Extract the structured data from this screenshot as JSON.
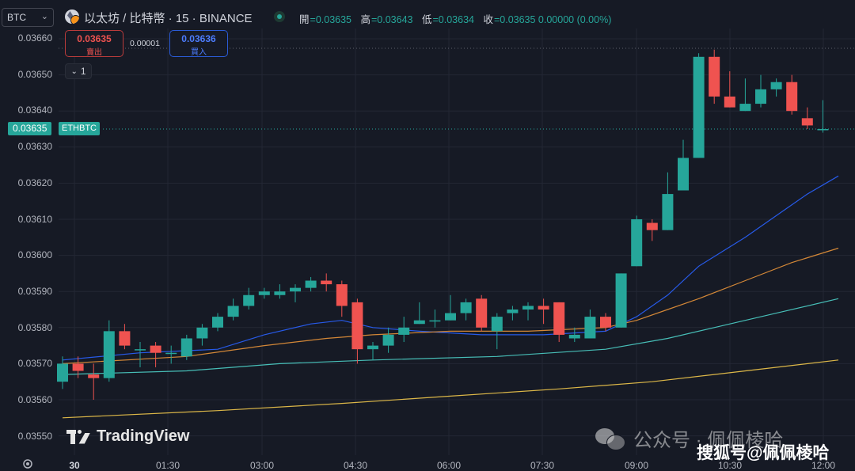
{
  "header": {
    "symbol_select": "BTC",
    "title": "以太坊 / 比特幣 · 15 · BINANCE",
    "ohlc": [
      {
        "k": "開",
        "v": "=0.03635"
      },
      {
        "k": "高",
        "v": "=0.03643"
      },
      {
        "k": "低",
        "v": "=0.03634"
      },
      {
        "k": "收",
        "v": "=0.03635 0.00000 (0.00%)"
      }
    ]
  },
  "trade": {
    "sell_price": "0.03635",
    "sell_label": "賣出",
    "spread": "0.00001",
    "buy_price": "0.03636",
    "buy_label": "買入",
    "collapse_label": "1"
  },
  "price_axis": {
    "ticks": [
      "0.03660",
      "0.03650",
      "0.03640",
      "0.03630",
      "0.03620",
      "0.03610",
      "0.03600",
      "0.03590",
      "0.03580",
      "0.03570",
      "0.03560",
      "0.03550"
    ],
    "last_price": "0.03635",
    "last_symbol": "ETHBTC"
  },
  "time_axis": [
    "30",
    "01:30",
    "03:00",
    "04:30",
    "06:00",
    "07:30",
    "09:00",
    "10:30",
    "12:00"
  ],
  "watermarks": {
    "tradingview": "TradingView",
    "wechat": "公众号 · 佩佩棱哈",
    "sohu": "搜狐号@佩佩棱哈"
  },
  "colors": {
    "background": "#161a25",
    "up": "#26a69a",
    "down": "#ef5350",
    "ma_blue": "#2962ff",
    "ma_orange": "#e8933a",
    "ma_teal": "#4dd0c8",
    "ma_yellow": "#f2c94c"
  },
  "chart_data": {
    "type": "candlestick",
    "symbol": "ETHBTC",
    "ylim": [
      0.03545,
      0.03665
    ],
    "candles": [
      [
        0.03565,
        0.03572,
        0.03563,
        0.0357
      ],
      [
        0.0357,
        0.03572,
        0.03566,
        0.03568
      ],
      [
        0.03567,
        0.0357,
        0.0356,
        0.03566
      ],
      [
        0.03566,
        0.03582,
        0.03565,
        0.03579
      ],
      [
        0.03579,
        0.03581,
        0.03574,
        0.03575
      ],
      [
        0.03574,
        0.03576,
        0.03569,
        0.03574
      ],
      [
        0.03575,
        0.03576,
        0.03569,
        0.03573
      ],
      [
        0.03573,
        0.03575,
        0.0357,
        0.03573
      ],
      [
        0.03572,
        0.03578,
        0.03571,
        0.03577
      ],
      [
        0.03577,
        0.03581,
        0.03575,
        0.0358
      ],
      [
        0.0358,
        0.03584,
        0.03579,
        0.03583
      ],
      [
        0.03583,
        0.03588,
        0.03582,
        0.03586
      ],
      [
        0.03586,
        0.03591,
        0.03585,
        0.03589
      ],
      [
        0.03589,
        0.03591,
        0.03588,
        0.0359
      ],
      [
        0.03589,
        0.03592,
        0.03588,
        0.0359
      ],
      [
        0.0359,
        0.03592,
        0.03587,
        0.03591
      ],
      [
        0.03591,
        0.03594,
        0.0359,
        0.03593
      ],
      [
        0.03593,
        0.03595,
        0.0359,
        0.03592
      ],
      [
        0.03592,
        0.03593,
        0.03583,
        0.03586
      ],
      [
        0.03587,
        0.03588,
        0.0357,
        0.03574
      ],
      [
        0.03574,
        0.03576,
        0.03571,
        0.03575
      ],
      [
        0.03575,
        0.0358,
        0.03573,
        0.03578
      ],
      [
        0.03578,
        0.03583,
        0.03576,
        0.0358
      ],
      [
        0.03581,
        0.03587,
        0.03581,
        0.03582
      ],
      [
        0.03582,
        0.03585,
        0.0358,
        0.03582
      ],
      [
        0.03582,
        0.03589,
        0.03582,
        0.03584
      ],
      [
        0.03584,
        0.03588,
        0.03582,
        0.03587
      ],
      [
        0.03588,
        0.03589,
        0.03579,
        0.0358
      ],
      [
        0.03579,
        0.03584,
        0.03574,
        0.03583
      ],
      [
        0.03584,
        0.03586,
        0.03582,
        0.03585
      ],
      [
        0.03585,
        0.03587,
        0.03582,
        0.03586
      ],
      [
        0.03586,
        0.03588,
        0.03581,
        0.03585
      ],
      [
        0.03587,
        0.03587,
        0.03576,
        0.03578
      ],
      [
        0.03577,
        0.0358,
        0.03576,
        0.03578
      ],
      [
        0.03577,
        0.03585,
        0.03577,
        0.03583
      ],
      [
        0.03583,
        0.03584,
        0.03579,
        0.0358
      ],
      [
        0.0358,
        0.03595,
        0.0358,
        0.03595
      ],
      [
        0.03597,
        0.03611,
        0.03597,
        0.0361
      ],
      [
        0.03609,
        0.0361,
        0.03604,
        0.03607
      ],
      [
        0.03607,
        0.03623,
        0.03607,
        0.03617
      ],
      [
        0.03618,
        0.03632,
        0.03618,
        0.03627
      ],
      [
        0.03627,
        0.03656,
        0.03627,
        0.03655
      ],
      [
        0.03655,
        0.03657,
        0.03642,
        0.03644
      ],
      [
        0.03644,
        0.03651,
        0.03641,
        0.03641
      ],
      [
        0.0364,
        0.03649,
        0.0364,
        0.03642
      ],
      [
        0.03642,
        0.0365,
        0.03641,
        0.03646
      ],
      [
        0.03646,
        0.03649,
        0.03644,
        0.03648
      ],
      [
        0.03648,
        0.0365,
        0.03639,
        0.0364
      ],
      [
        0.03638,
        0.03641,
        0.03635,
        0.03636
      ],
      [
        0.03635,
        0.03643,
        0.03634,
        0.03635
      ]
    ],
    "ma_series": [
      {
        "color": "#2962ff",
        "values": [
          [
            0,
            0.03571
          ],
          [
            5,
            0.03573
          ],
          [
            10,
            0.03574
          ],
          [
            13,
            0.03578
          ],
          [
            16,
            0.03581
          ],
          [
            18,
            0.03582
          ],
          [
            20,
            0.0358
          ],
          [
            23,
            0.03579
          ],
          [
            27,
            0.03578
          ],
          [
            31,
            0.03578
          ],
          [
            35,
            0.03579
          ],
          [
            37,
            0.03583
          ],
          [
            39,
            0.03589
          ],
          [
            41,
            0.03597
          ],
          [
            44,
            0.03605
          ],
          [
            46,
            0.03611
          ],
          [
            48,
            0.03617
          ],
          [
            50,
            0.03622
          ]
        ]
      },
      {
        "color": "#e8933a",
        "values": [
          [
            0,
            0.0357
          ],
          [
            8,
            0.03572
          ],
          [
            13,
            0.03575
          ],
          [
            17,
            0.03577
          ],
          [
            20,
            0.03578
          ],
          [
            25,
            0.03579
          ],
          [
            30,
            0.03579
          ],
          [
            35,
            0.0358
          ],
          [
            37,
            0.03582
          ],
          [
            39,
            0.03585
          ],
          [
            41,
            0.03588
          ],
          [
            44,
            0.03593
          ],
          [
            47,
            0.03598
          ],
          [
            50,
            0.03602
          ]
        ]
      },
      {
        "color": "#4dd0c8",
        "values": [
          [
            0,
            0.03567
          ],
          [
            8,
            0.03568
          ],
          [
            14,
            0.0357
          ],
          [
            20,
            0.03571
          ],
          [
            28,
            0.03572
          ],
          [
            35,
            0.03574
          ],
          [
            39,
            0.03577
          ],
          [
            42,
            0.0358
          ],
          [
            46,
            0.03584
          ],
          [
            50,
            0.03588
          ]
        ]
      },
      {
        "color": "#f2c94c",
        "values": [
          [
            0,
            0.03555
          ],
          [
            10,
            0.03557
          ],
          [
            18,
            0.03559
          ],
          [
            25,
            0.03561
          ],
          [
            32,
            0.03563
          ],
          [
            38,
            0.03565
          ],
          [
            42,
            0.03567
          ],
          [
            46,
            0.03569
          ],
          [
            50,
            0.03571
          ]
        ]
      }
    ]
  }
}
